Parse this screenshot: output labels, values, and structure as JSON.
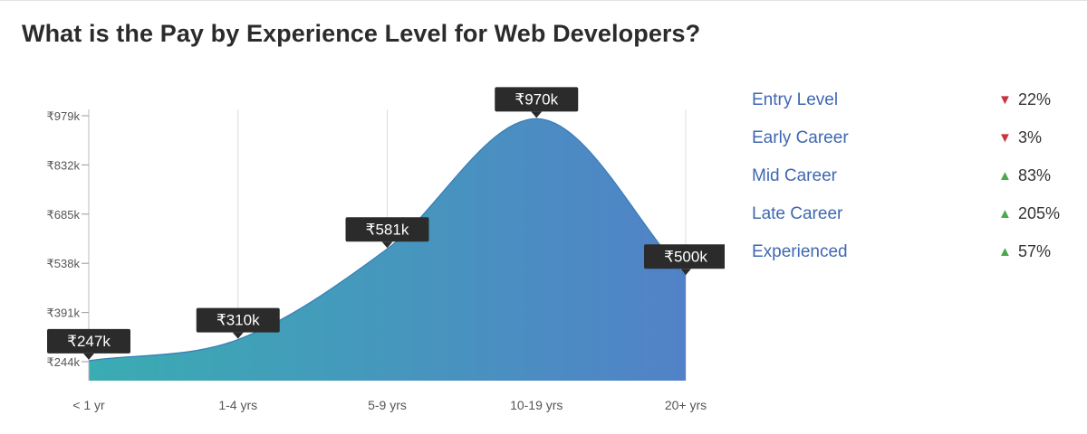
{
  "title": "What is the Pay by Experience Level for Web Developers?",
  "colors": {
    "area_start": "#3aacb2",
    "area_end": "#5182c8",
    "callout_bg": "#2b2b2b",
    "legend_text": "#3f68b1",
    "down": "#c8343f",
    "up": "#4aa84f"
  },
  "chart_data": {
    "type": "area",
    "title": "What is the Pay by Experience Level for Web Developers?",
    "categories": [
      "< 1 yr",
      "1-4 yrs",
      "5-9 yrs",
      "10-19 yrs",
      "20+ yrs"
    ],
    "values": [
      247,
      310,
      581,
      970,
      500
    ],
    "value_labels": [
      "₹247k",
      "₹310k",
      "₹581k",
      "₹970k",
      "₹500k"
    ],
    "y_ticks": [
      244,
      391,
      538,
      685,
      832,
      979
    ],
    "y_tick_labels": [
      "₹244k",
      "₹391k",
      "₹538k",
      "₹685k",
      "₹832k",
      "₹979k"
    ],
    "y_unit": "thousand INR",
    "grid": "vertical"
  },
  "legend": [
    {
      "label": "Entry Level",
      "direction": "down",
      "arrow": "▼",
      "change": "22%"
    },
    {
      "label": "Early Career",
      "direction": "down",
      "arrow": "▼",
      "change": "3%"
    },
    {
      "label": "Mid Career",
      "direction": "up",
      "arrow": "▲",
      "change": "83%"
    },
    {
      "label": "Late Career",
      "direction": "up",
      "arrow": "▲",
      "change": "205%"
    },
    {
      "label": "Experienced",
      "direction": "up",
      "arrow": "▲",
      "change": "57%"
    }
  ]
}
